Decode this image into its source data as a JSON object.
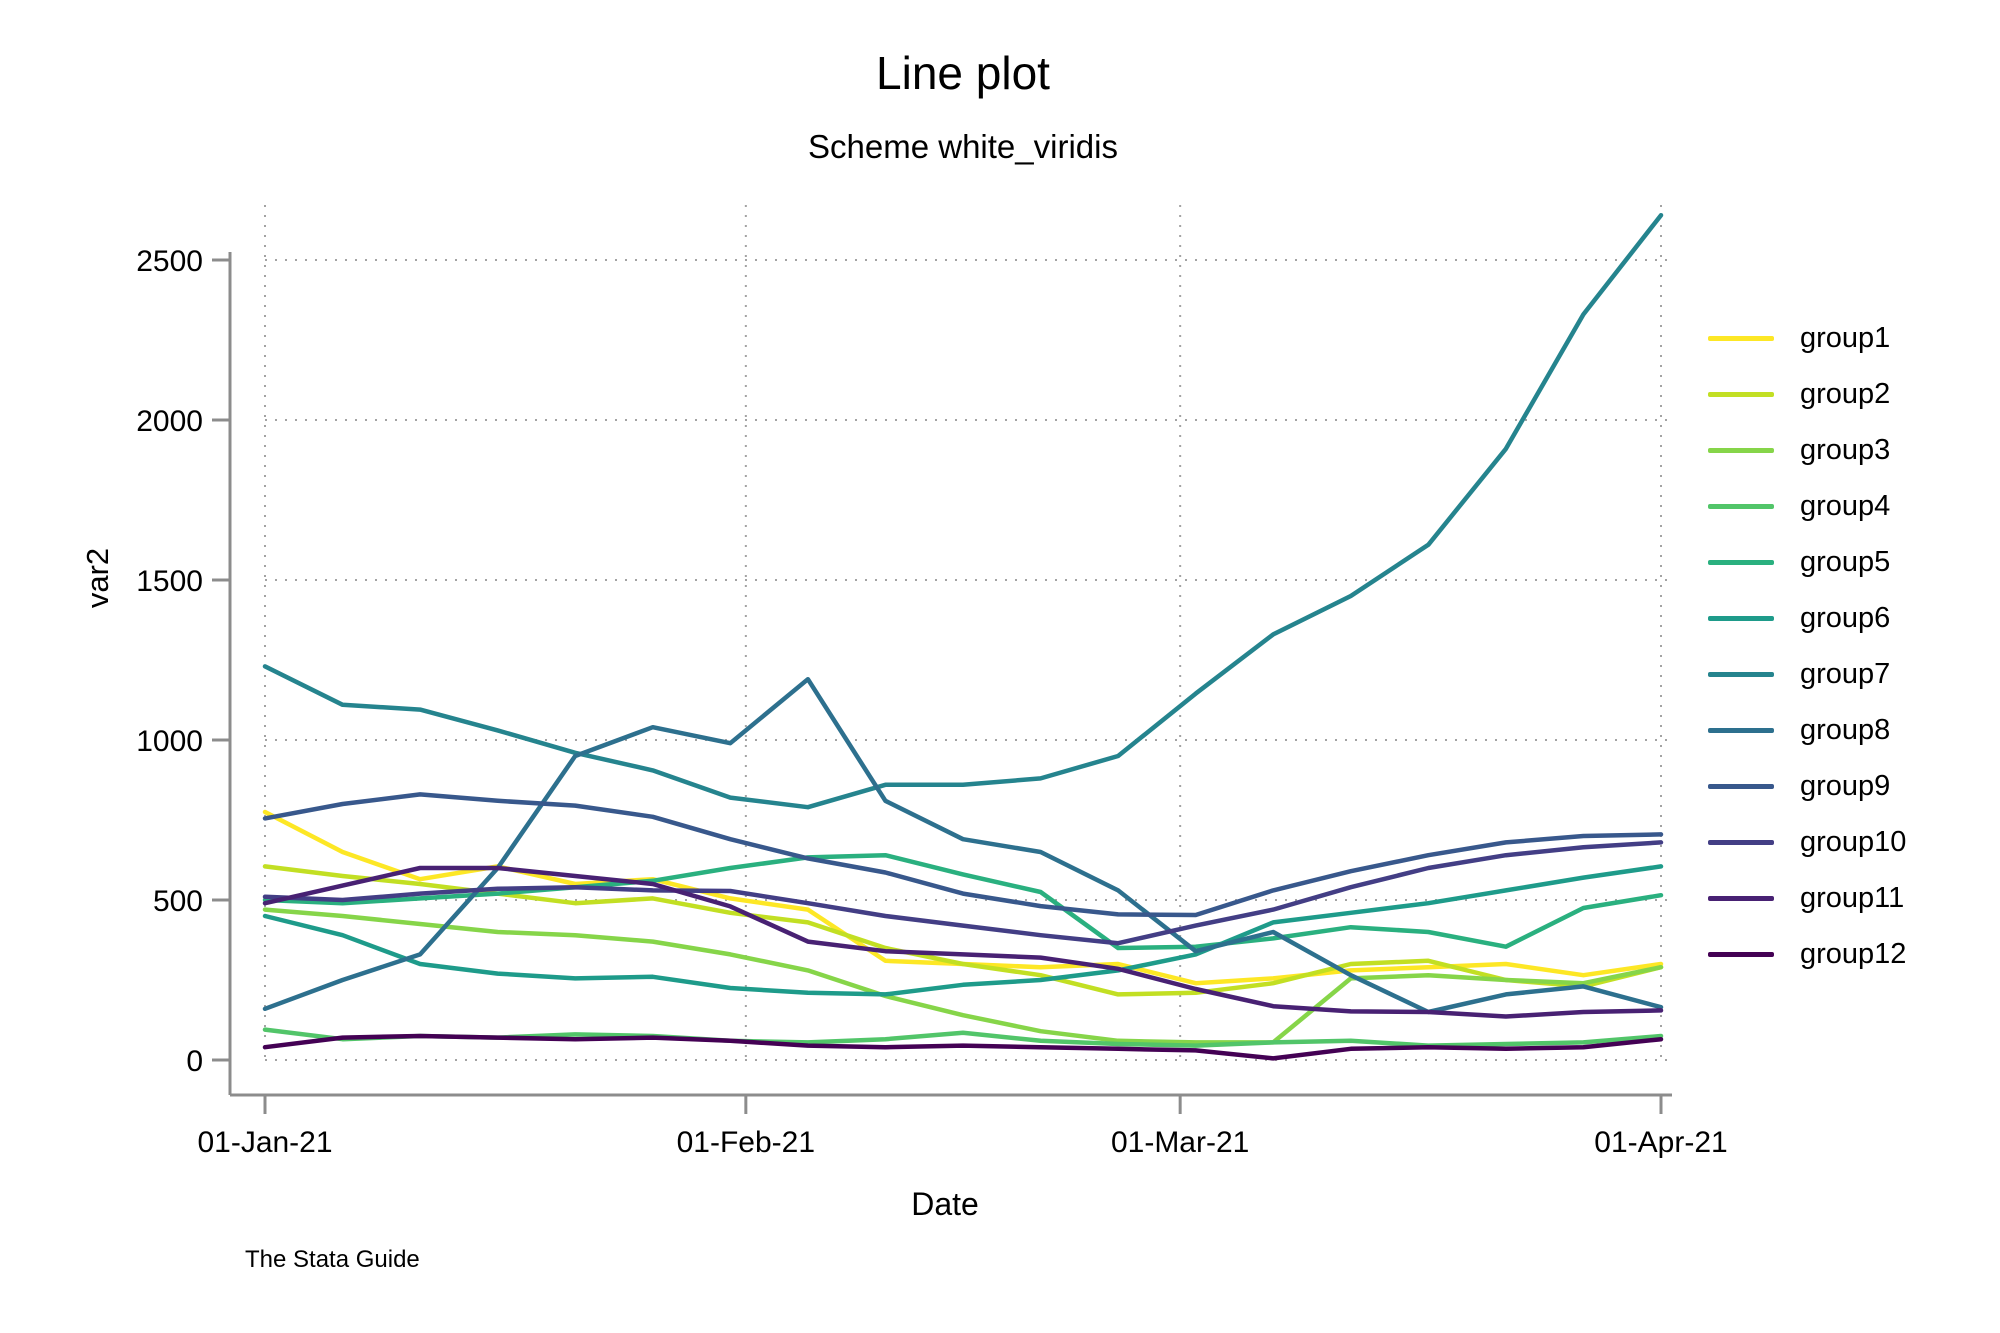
{
  "header": {
    "title": "Line plot",
    "subtitle": "Scheme white_viridis",
    "credit": "The Stata Guide"
  },
  "chart_data": {
    "type": "line",
    "title": "Line plot",
    "subtitle": "Scheme white_viridis",
    "xlabel": "Date",
    "ylabel": "var2",
    "grid": true,
    "legend_position": "right",
    "ylim": [
      0,
      2700
    ],
    "y_ticks": [
      0,
      500,
      1000,
      1500,
      2000,
      2500
    ],
    "x_tick_labels": [
      "01-Jan-21",
      "01-Feb-21",
      "01-Mar-21",
      "01-Apr-21"
    ],
    "x_tick_days": [
      0,
      31,
      59,
      90
    ],
    "x_range_days": [
      0,
      90
    ],
    "x_days": [
      0,
      5,
      10,
      15,
      20,
      25,
      30,
      35,
      40,
      45,
      50,
      55,
      60,
      65,
      70,
      75,
      80,
      85,
      90
    ],
    "series": [
      {
        "name": "group1",
        "color": "#fde725",
        "values": [
          775,
          650,
          565,
          605,
          550,
          565,
          505,
          470,
          310,
          300,
          290,
          300,
          240,
          255,
          280,
          290,
          300,
          265,
          300
        ]
      },
      {
        "name": "group2",
        "color": "#c2df23",
        "values": [
          605,
          575,
          550,
          520,
          490,
          505,
          460,
          430,
          350,
          300,
          265,
          205,
          210,
          240,
          300,
          310,
          250,
          230,
          290
        ]
      },
      {
        "name": "group3",
        "color": "#86d549",
        "values": [
          470,
          450,
          425,
          400,
          390,
          370,
          330,
          280,
          200,
          140,
          90,
          60,
          55,
          55,
          255,
          265,
          250,
          240,
          290
        ]
      },
      {
        "name": "group4",
        "color": "#52c569",
        "values": [
          95,
          65,
          75,
          70,
          80,
          75,
          60,
          55,
          65,
          85,
          60,
          50,
          45,
          55,
          60,
          45,
          50,
          55,
          75
        ]
      },
      {
        "name": "group5",
        "color": "#2ab07f",
        "values": [
          500,
          490,
          505,
          520,
          540,
          560,
          600,
          633,
          640,
          580,
          525,
          350,
          354,
          380,
          415,
          400,
          354,
          475,
          515
        ]
      },
      {
        "name": "group6",
        "color": "#1e9b8a",
        "values": [
          450,
          390,
          300,
          270,
          255,
          260,
          225,
          210,
          205,
          235,
          250,
          280,
          330,
          430,
          460,
          490,
          530,
          570,
          605
        ]
      },
      {
        "name": "group7",
        "color": "#25848e",
        "values": [
          1230,
          1110,
          1095,
          1030,
          960,
          905,
          820,
          790,
          860,
          860,
          880,
          950,
          1145,
          1330,
          1450,
          1610,
          1910,
          2330,
          2640
        ]
      },
      {
        "name": "group8",
        "color": "#2d708e",
        "values": [
          160,
          250,
          330,
          600,
          950,
          1040,
          990,
          1190,
          810,
          690,
          650,
          530,
          340,
          400,
          265,
          150,
          205,
          230,
          165
        ]
      },
      {
        "name": "group9",
        "color": "#38588c",
        "values": [
          755,
          800,
          830,
          810,
          795,
          760,
          690,
          630,
          586,
          520,
          481,
          455,
          453,
          530,
          590,
          640,
          680,
          700,
          705
        ]
      },
      {
        "name": "group10",
        "color": "#433e85",
        "values": [
          510,
          500,
          520,
          535,
          540,
          530,
          528,
          490,
          450,
          420,
          390,
          365,
          420,
          470,
          540,
          600,
          640,
          665,
          680
        ]
      },
      {
        "name": "group11",
        "color": "#482173",
        "values": [
          490,
          545,
          600,
          600,
          575,
          550,
          480,
          370,
          340,
          330,
          320,
          285,
          222,
          168,
          152,
          150,
          136,
          150,
          155
        ]
      },
      {
        "name": "group12",
        "color": "#440154",
        "values": [
          40,
          70,
          75,
          70,
          65,
          70,
          60,
          45,
          40,
          45,
          40,
          35,
          30,
          5,
          35,
          40,
          35,
          40,
          65
        ]
      }
    ]
  }
}
